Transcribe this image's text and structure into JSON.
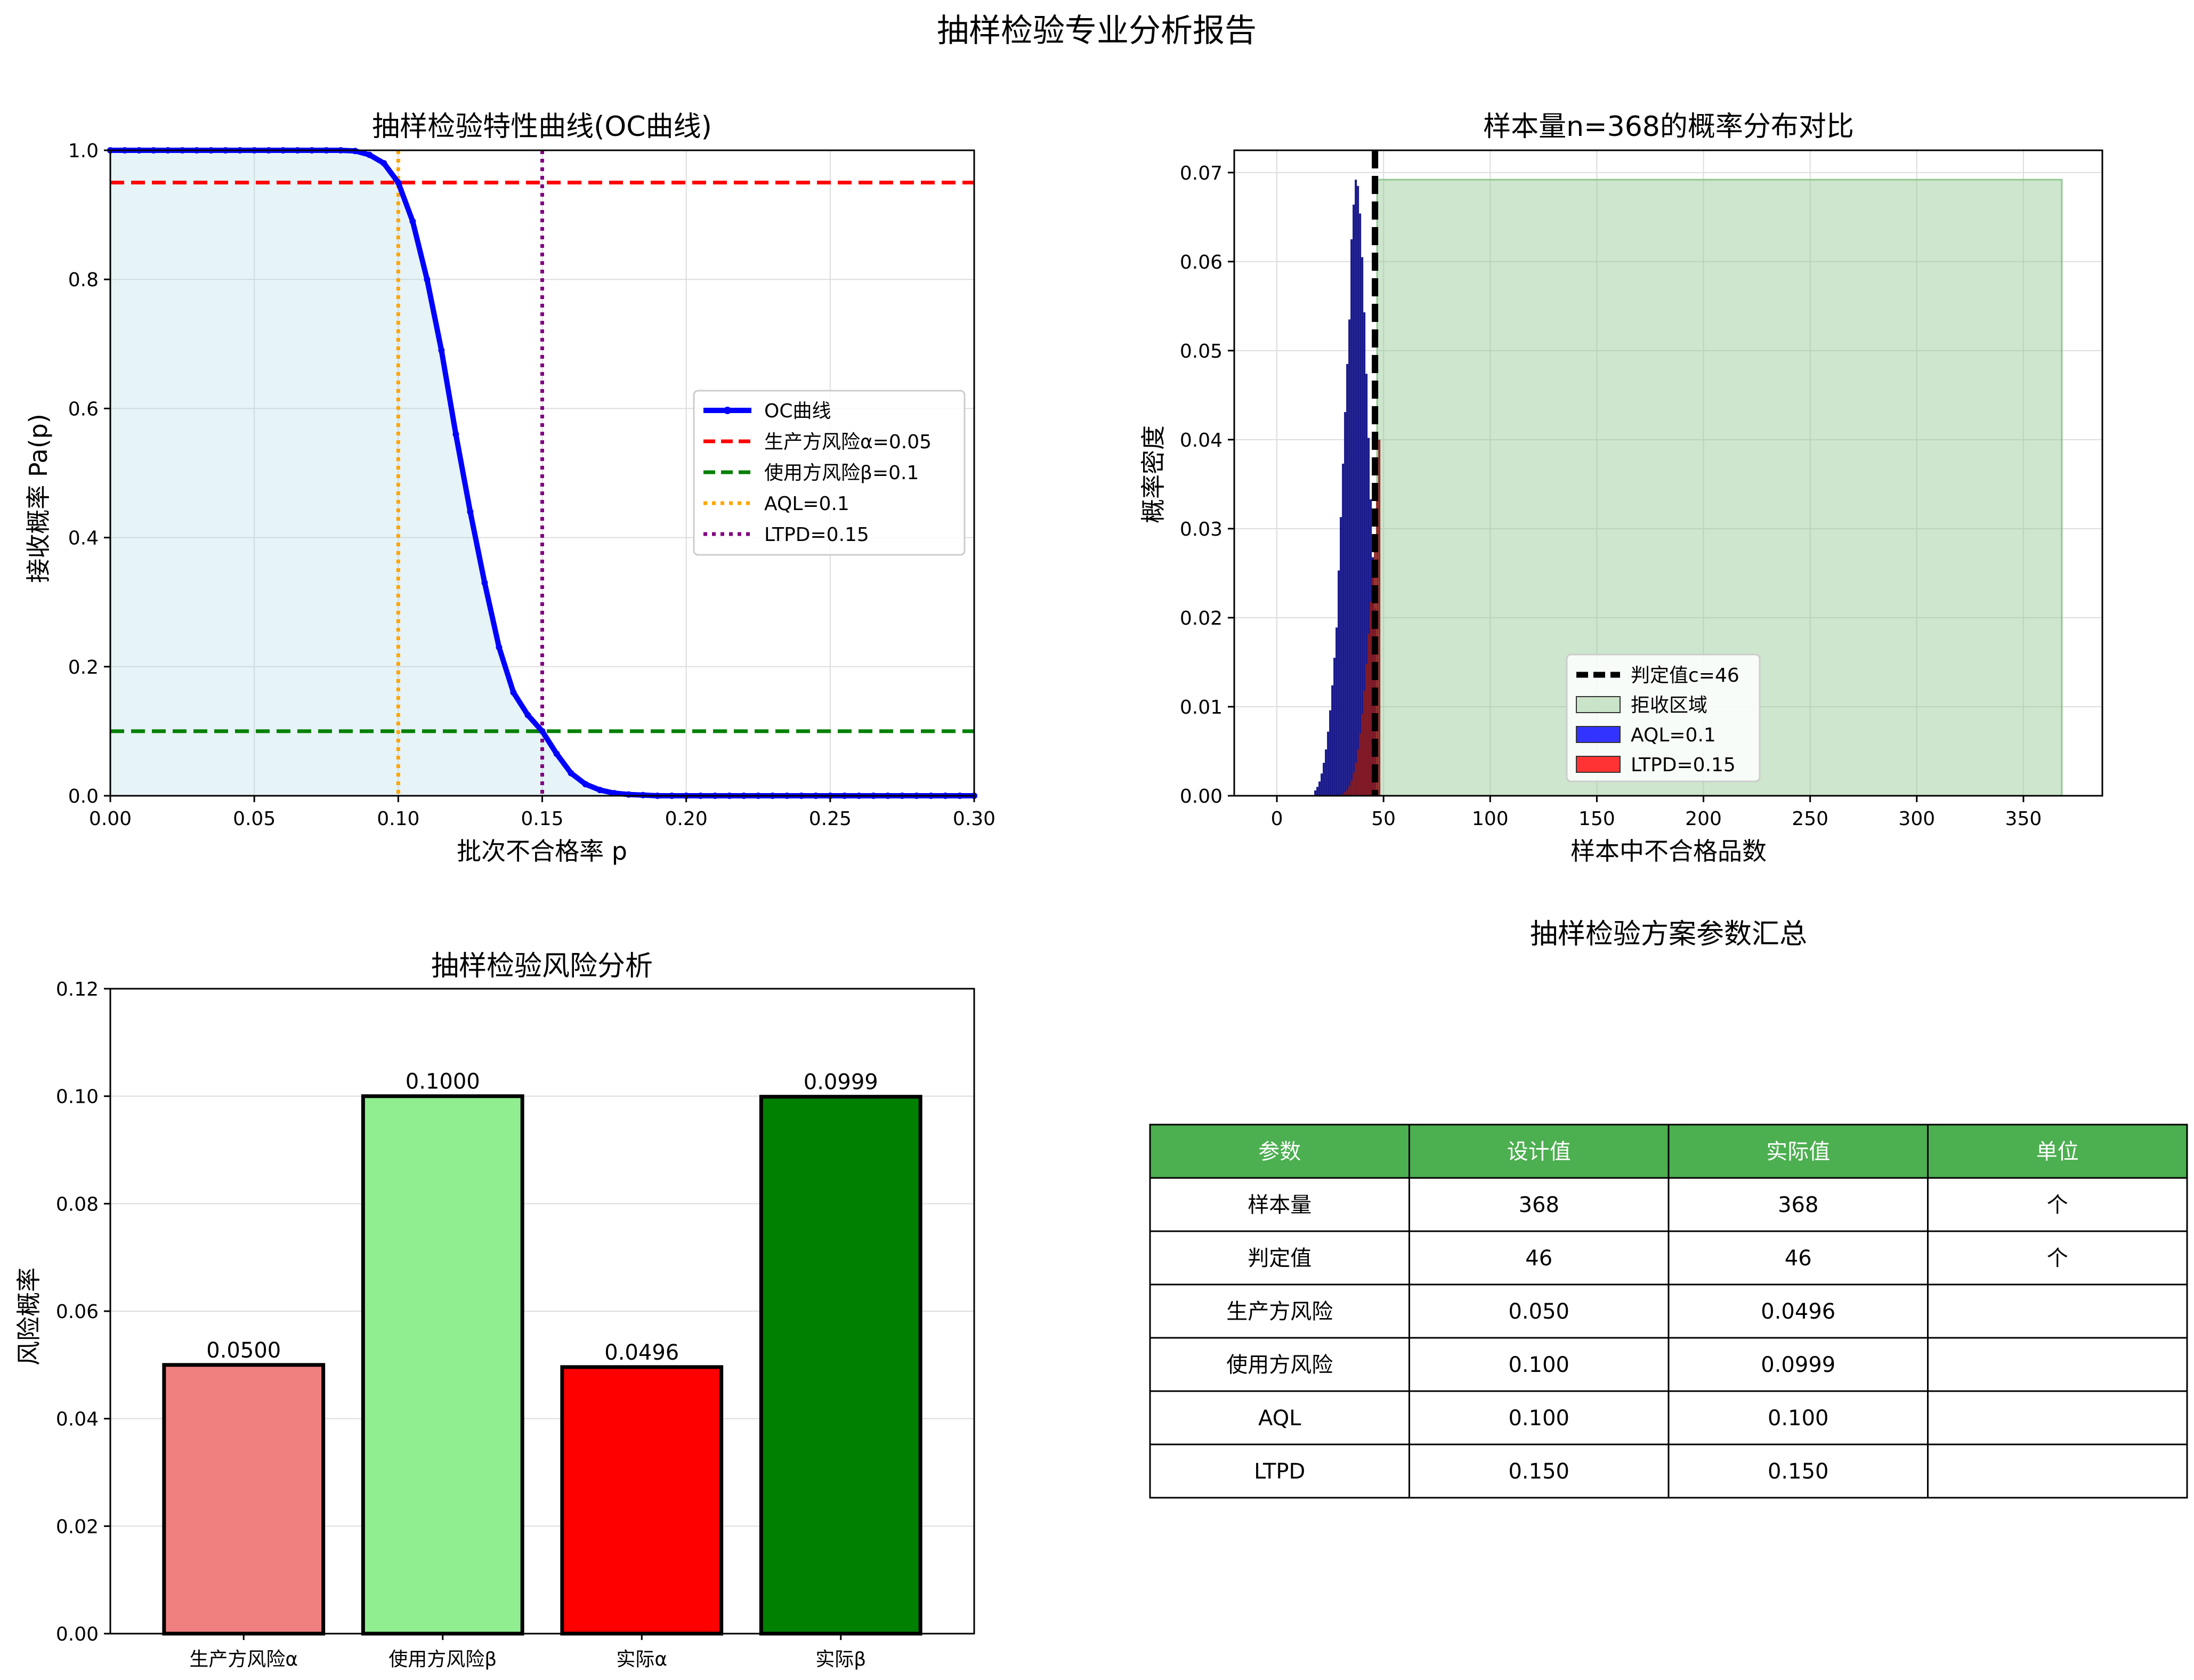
{
  "suptitle": "抽样检验专业分析报告",
  "chart_data": [
    {
      "type": "line",
      "title": "抽样检验特性曲线(OC曲线)",
      "xlabel": "批次不合格率 p",
      "ylabel": "接收概率 Pa(p)",
      "xlim": [
        0.0,
        0.3
      ],
      "ylim": [
        0.0,
        1.0
      ],
      "xticks": [
        "0.00",
        "0.05",
        "0.10",
        "0.15",
        "0.20",
        "0.25",
        "0.30"
      ],
      "yticks": [
        "0.0",
        "0.2",
        "0.4",
        "0.6",
        "0.8",
        "1.0"
      ],
      "grid": true,
      "legend_position": "center-right",
      "series": [
        {
          "name": "OC曲线",
          "color": "#0000ff",
          "x": [
            0.0,
            0.005,
            0.01,
            0.015,
            0.02,
            0.025,
            0.03,
            0.035,
            0.04,
            0.045,
            0.05,
            0.055,
            0.06,
            0.065,
            0.07,
            0.075,
            0.08,
            0.085,
            0.09,
            0.095,
            0.1,
            0.105,
            0.11,
            0.115,
            0.12,
            0.125,
            0.13,
            0.135,
            0.14,
            0.145,
            0.15,
            0.155,
            0.16,
            0.165,
            0.17,
            0.175,
            0.18,
            0.185,
            0.19,
            0.195,
            0.2,
            0.205,
            0.21,
            0.215,
            0.22,
            0.225,
            0.23,
            0.235,
            0.24,
            0.245,
            0.25,
            0.255,
            0.26,
            0.265,
            0.27,
            0.275,
            0.28,
            0.285,
            0.29,
            0.295,
            0.3
          ],
          "y": [
            1.0,
            1.0,
            1.0,
            1.0,
            1.0,
            1.0,
            1.0,
            1.0,
            1.0,
            1.0,
            1.0,
            1.0,
            1.0,
            1.0,
            1.0,
            1.0,
            1.0,
            0.999,
            0.993,
            0.98,
            0.95,
            0.89,
            0.8,
            0.69,
            0.56,
            0.44,
            0.33,
            0.23,
            0.16,
            0.125,
            0.1,
            0.065,
            0.035,
            0.018,
            0.009,
            0.004,
            0.002,
            0.001,
            0.0,
            0.0,
            0.0,
            0.0,
            0.0,
            0.0,
            0.0,
            0.0,
            0.0,
            0.0,
            0.0,
            0.0,
            0.0,
            0.0,
            0.0,
            0.0,
            0.0,
            0.0,
            0.0,
            0.0,
            0.0,
            0.0,
            0.0
          ]
        }
      ],
      "hlines": [
        {
          "name": "生产方风险α=0.05",
          "y": 0.95,
          "color": "#ff0000",
          "style": "dashed"
        },
        {
          "name": "使用方风险β=0.1",
          "y": 0.1,
          "color": "#008000",
          "style": "dashed"
        }
      ],
      "vlines": [
        {
          "name": "AQL=0.1",
          "x": 0.1,
          "color": "#ffa500",
          "style": "dotted"
        },
        {
          "name": "LTPD=0.15",
          "x": 0.15,
          "color": "#800080",
          "style": "dotted"
        }
      ],
      "fill_color": "#add8e6"
    },
    {
      "type": "bar",
      "title": "样本量n=368的概率分布对比",
      "xlabel": "样本中不合格品数",
      "ylabel": "概率密度",
      "xlim": [
        -20,
        387
      ],
      "ylim": [
        0.0,
        0.0725
      ],
      "xticks": [
        0,
        50,
        100,
        150,
        200,
        250,
        300,
        350
      ],
      "yticks": [
        "0.00",
        "0.01",
        "0.02",
        "0.03",
        "0.04",
        "0.05",
        "0.06",
        "0.07"
      ],
      "grid": true,
      "legend_position": "bottom-center",
      "cutoff": {
        "name": "判定值c=46",
        "x": 46,
        "color": "#000000"
      },
      "reject_region": {
        "name": "拒收区域",
        "x_from": 47,
        "x_to": 368,
        "height": 0.0692,
        "color": "#90c890"
      },
      "series": [
        {
          "name": "AQL=0.1",
          "color": "#0000ff",
          "x": [
            18,
            19,
            20,
            21,
            22,
            23,
            24,
            25,
            26,
            27,
            28,
            29,
            30,
            31,
            32,
            33,
            34,
            35,
            36,
            37,
            38,
            39,
            40,
            41,
            42,
            43,
            44,
            45,
            46
          ],
          "values": [
            0.0006,
            0.001,
            0.0016,
            0.0025,
            0.0037,
            0.0052,
            0.0072,
            0.0096,
            0.0124,
            0.0155,
            0.0189,
            0.0253,
            0.0313,
            0.0373,
            0.0431,
            0.0485,
            0.0535,
            0.0625,
            0.0664,
            0.0692,
            0.0685,
            0.0654,
            0.0605,
            0.0543,
            0.0474,
            0.0402,
            0.0333,
            0.0268,
            0.021
          ]
        },
        {
          "name": "LTPD=0.15",
          "color": "#ff0000",
          "x": [
            30,
            31,
            32,
            33,
            34,
            35,
            36,
            37,
            38,
            39,
            40,
            41,
            42,
            43,
            44,
            45,
            46,
            47,
            48
          ],
          "values": [
            0.0001,
            0.0002,
            0.0004,
            0.0007,
            0.0011,
            0.0017,
            0.0026,
            0.0037,
            0.0052,
            0.007,
            0.0092,
            0.0118,
            0.0148,
            0.0182,
            0.0218,
            0.0255,
            0.0293,
            0.0345,
            0.04
          ]
        }
      ]
    },
    {
      "type": "bar",
      "title": "抽样检验风险分析",
      "xlabel": "",
      "ylabel": "风险概率",
      "ylim": [
        0.0,
        0.12
      ],
      "yticks": [
        "0.00",
        "0.02",
        "0.04",
        "0.06",
        "0.08",
        "0.10",
        "0.12"
      ],
      "grid": true,
      "categories": [
        "生产方风险α",
        "使用方风险β",
        "实际α",
        "实际β"
      ],
      "values": [
        0.05,
        0.1,
        0.0496,
        0.0999
      ],
      "labels": [
        "0.0500",
        "0.1000",
        "0.0496",
        "0.0999"
      ],
      "colors": [
        "#f08080",
        "#90ee90",
        "#ff0000",
        "#008000"
      ]
    },
    {
      "type": "table",
      "title": "抽样检验方案参数汇总",
      "header_color": "#4caf50",
      "columns": [
        "参数",
        "设计值",
        "实际值",
        "单位"
      ],
      "rows": [
        [
          "样本量",
          "368",
          "368",
          "个"
        ],
        [
          "判定值",
          "46",
          "46",
          "个"
        ],
        [
          "生产方风险",
          "0.050",
          "0.0496",
          ""
        ],
        [
          "使用方风险",
          "0.100",
          "0.0999",
          ""
        ],
        [
          "AQL",
          "0.100",
          "0.100",
          ""
        ],
        [
          "LTPD",
          "0.150",
          "0.150",
          ""
        ]
      ]
    }
  ]
}
